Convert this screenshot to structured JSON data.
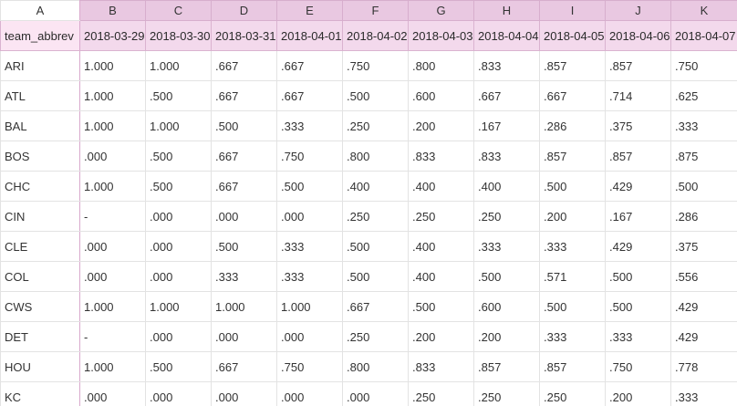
{
  "column_letters": [
    "A",
    "B",
    "C",
    "D",
    "E",
    "F",
    "G",
    "H",
    "I",
    "J",
    "K"
  ],
  "header_row": [
    "team_abbrev",
    "2018-03-29",
    "2018-03-30",
    "2018-03-31",
    "2018-04-01",
    "2018-04-02",
    "2018-04-03",
    "2018-04-04",
    "2018-04-05",
    "2018-04-06",
    "2018-04-07"
  ],
  "rows": [
    {
      "team": "ARI",
      "values": [
        "1.000",
        "1.000",
        ".667",
        ".667",
        ".750",
        ".800",
        ".833",
        ".857",
        ".857",
        ".750"
      ]
    },
    {
      "team": "ATL",
      "values": [
        "1.000",
        ".500",
        ".667",
        ".667",
        ".500",
        ".600",
        ".667",
        ".667",
        ".714",
        ".625"
      ]
    },
    {
      "team": "BAL",
      "values": [
        "1.000",
        "1.000",
        ".500",
        ".333",
        ".250",
        ".200",
        ".167",
        ".286",
        ".375",
        ".333"
      ]
    },
    {
      "team": "BOS",
      "values": [
        ".000",
        ".500",
        ".667",
        ".750",
        ".800",
        ".833",
        ".833",
        ".857",
        ".857",
        ".875"
      ]
    },
    {
      "team": "CHC",
      "values": [
        "1.000",
        ".500",
        ".667",
        ".500",
        ".400",
        ".400",
        ".400",
        ".500",
        ".429",
        ".500"
      ]
    },
    {
      "team": "CIN",
      "values": [
        "-",
        ".000",
        ".000",
        ".000",
        ".250",
        ".250",
        ".250",
        ".200",
        ".167",
        ".286"
      ]
    },
    {
      "team": "CLE",
      "values": [
        ".000",
        ".000",
        ".500",
        ".333",
        ".500",
        ".400",
        ".333",
        ".333",
        ".429",
        ".375"
      ]
    },
    {
      "team": "COL",
      "values": [
        ".000",
        ".000",
        ".333",
        ".333",
        ".500",
        ".400",
        ".500",
        ".571",
        ".500",
        ".556"
      ]
    },
    {
      "team": "CWS",
      "values": [
        "1.000",
        "1.000",
        "1.000",
        "1.000",
        ".667",
        ".500",
        ".600",
        ".500",
        ".500",
        ".429"
      ]
    },
    {
      "team": "DET",
      "values": [
        "-",
        ".000",
        ".000",
        ".000",
        ".250",
        ".200",
        ".200",
        ".333",
        ".333",
        ".429"
      ]
    },
    {
      "team": "HOU",
      "values": [
        "1.000",
        ".500",
        ".667",
        ".750",
        ".800",
        ".833",
        ".857",
        ".857",
        ".750",
        ".778"
      ]
    },
    {
      "team": "KC",
      "values": [
        ".000",
        ".000",
        ".000",
        ".000",
        ".000",
        ".250",
        ".250",
        ".250",
        ".200",
        ".333"
      ]
    }
  ]
}
